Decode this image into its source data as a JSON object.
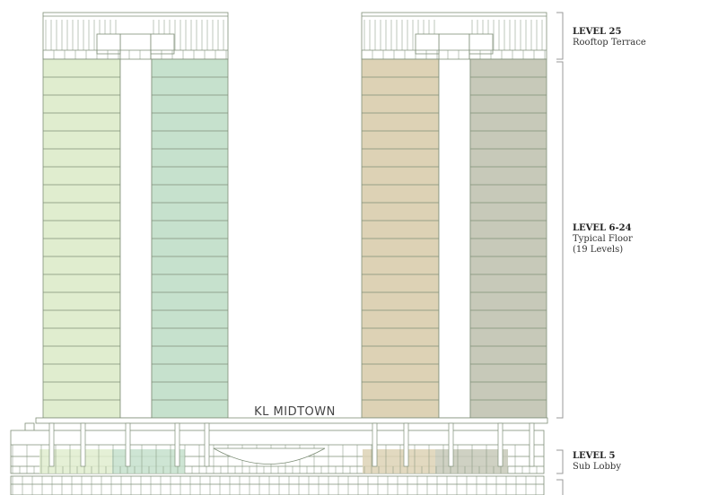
{
  "building_name": "KL MIDTOWN",
  "colors": {
    "line": "#7f8f78",
    "left_tower_a": "#e0edcf",
    "left_tower_b": "#c6e1cd",
    "right_tower_a": "#ddd2b5",
    "right_tower_b": "#c7c9b9"
  },
  "typical_floor_count": 19,
  "levels": [
    {
      "title": "LEVEL 25",
      "desc": "Rooftop Terrace"
    },
    {
      "title": "LEVEL 6-24",
      "desc": "Typical Floor",
      "note": "(19 Levels)"
    },
    {
      "title": "LEVEL 5",
      "desc": "Sub Lobby"
    }
  ]
}
